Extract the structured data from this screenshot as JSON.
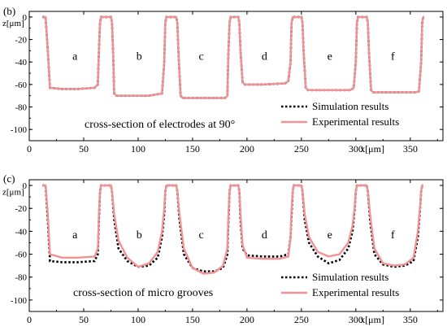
{
  "figure": {
    "background": "#ffffff",
    "sim_color": "#000000",
    "exp_color": "#f29191"
  },
  "chart_data": [
    {
      "type": "line",
      "panel_label": "(b)",
      "annotation": "cross-section of electrodes at 90°",
      "xlabel": "x[μm]",
      "ylabel": "z[μm]",
      "xlim": [
        0,
        380
      ],
      "ylim": [
        -110,
        5
      ],
      "x_ticks": [
        0,
        50,
        100,
        150,
        200,
        250,
        300,
        350
      ],
      "x_tick_labels": [
        "0",
        "50",
        "100",
        "150",
        "200",
        "250",
        "300",
        "350"
      ],
      "y_ticks": [
        0,
        -20,
        -40,
        -60,
        -80,
        -100
      ],
      "y_tick_labels": [
        "0",
        "-20",
        "-40",
        "-60",
        "-80",
        "-100"
      ],
      "region_labels": [
        {
          "text": "a",
          "x": 42,
          "y": -38
        },
        {
          "text": "b",
          "x": 101,
          "y": -38
        },
        {
          "text": "c",
          "x": 158,
          "y": -38
        },
        {
          "text": "d",
          "x": 216,
          "y": -38
        },
        {
          "text": "e",
          "x": 276,
          "y": -38
        },
        {
          "text": "f",
          "x": 334,
          "y": -38
        }
      ],
      "legend": {
        "position": "bottom-right",
        "entries": [
          "Simulation results",
          "Experimental results"
        ]
      },
      "series": [
        {
          "name": "Simulation results",
          "style": "dotted",
          "x": [
            12,
            15,
            17,
            19,
            30,
            45,
            60,
            63,
            64,
            65,
            66,
            75,
            76,
            77,
            78,
            80,
            95,
            110,
            122,
            124,
            125,
            126,
            127,
            135,
            136,
            137,
            139,
            141,
            160,
            175,
            180,
            182,
            183,
            184,
            185,
            192,
            193,
            194,
            196,
            198,
            215,
            235,
            238,
            240,
            241,
            242,
            243,
            250,
            251,
            252,
            254,
            256,
            275,
            295,
            298,
            300,
            301,
            302,
            303,
            310,
            311,
            312,
            314,
            316,
            335,
            355,
            358,
            360,
            361,
            362,
            363
          ],
          "y": [
            0,
            0,
            -30,
            -63,
            -64,
            -64,
            -63,
            -60,
            -30,
            -5,
            0,
            0,
            -5,
            -30,
            -68,
            -70,
            -70,
            -70,
            -68,
            -40,
            -5,
            0,
            0,
            0,
            -5,
            -30,
            -70,
            -72,
            -72,
            -72,
            -72,
            -70,
            -30,
            -5,
            0,
            0,
            -5,
            -30,
            -58,
            -60,
            -60,
            -59,
            -57,
            -40,
            -5,
            0,
            0,
            0,
            -5,
            -30,
            -63,
            -65,
            -65,
            -65,
            -63,
            -40,
            -5,
            0,
            0,
            0,
            -5,
            -30,
            -65,
            -67,
            -67,
            -67,
            -66,
            -40,
            -5,
            0,
            0
          ]
        },
        {
          "name": "Experimental results",
          "style": "solid",
          "x": [
            12,
            15,
            17,
            19,
            30,
            45,
            60,
            63,
            64,
            65,
            66,
            75,
            76,
            77,
            78,
            80,
            95,
            110,
            122,
            124,
            125,
            126,
            127,
            135,
            136,
            137,
            139,
            141,
            160,
            175,
            180,
            182,
            183,
            184,
            185,
            192,
            193,
            194,
            196,
            198,
            215,
            235,
            238,
            240,
            241,
            242,
            243,
            250,
            251,
            252,
            254,
            256,
            275,
            295,
            298,
            300,
            301,
            302,
            303,
            310,
            311,
            312,
            314,
            316,
            335,
            355,
            358,
            360,
            361,
            362,
            363
          ],
          "y": [
            0,
            0,
            -30,
            -63,
            -64,
            -64,
            -63,
            -60,
            -30,
            -5,
            0,
            0,
            -5,
            -30,
            -68,
            -70,
            -70,
            -70,
            -68,
            -40,
            -5,
            0,
            0,
            0,
            -5,
            -30,
            -70,
            -72,
            -72,
            -72,
            -72,
            -70,
            -30,
            -5,
            0,
            0,
            -5,
            -30,
            -58,
            -60,
            -60,
            -59,
            -57,
            -40,
            -5,
            0,
            0,
            0,
            -5,
            -30,
            -63,
            -65,
            -65,
            -65,
            -63,
            -40,
            -5,
            0,
            0,
            0,
            -5,
            -30,
            -65,
            -67,
            -67,
            -67,
            -66,
            -40,
            -5,
            0,
            0
          ]
        }
      ]
    },
    {
      "type": "line",
      "panel_label": "(c)",
      "annotation": "cross-section of micro grooves",
      "xlabel": "x[μm]",
      "ylabel": "z[μm]",
      "xlim": [
        0,
        380
      ],
      "ylim": [
        -110,
        5
      ],
      "x_ticks": [
        0,
        50,
        100,
        150,
        200,
        250,
        300,
        350
      ],
      "x_tick_labels": [
        "0",
        "50",
        "100",
        "150",
        "200",
        "250",
        "300",
        "350"
      ],
      "y_ticks": [
        0,
        -20,
        -40,
        -60,
        -80,
        -100
      ],
      "y_tick_labels": [
        "0",
        "-20",
        "-40",
        "-60",
        "-80",
        "-100"
      ],
      "region_labels": [
        {
          "text": "a",
          "x": 42,
          "y": -46
        },
        {
          "text": "b",
          "x": 101,
          "y": -46
        },
        {
          "text": "c",
          "x": 158,
          "y": -46
        },
        {
          "text": "d",
          "x": 216,
          "y": -46
        },
        {
          "text": "e",
          "x": 276,
          "y": -46
        },
        {
          "text": "f",
          "x": 334,
          "y": -46
        }
      ],
      "legend": {
        "position": "bottom-right",
        "entries": [
          "Simulation results",
          "Experimental results"
        ]
      },
      "series": [
        {
          "name": "Simulation results",
          "style": "dotted",
          "x": [
            12,
            15,
            17,
            19,
            30,
            45,
            60,
            63,
            64,
            65,
            66,
            75,
            76,
            78,
            82,
            90,
            100,
            110,
            118,
            122,
            124,
            125,
            126,
            127,
            135,
            136,
            138,
            142,
            150,
            160,
            170,
            178,
            182,
            183,
            184,
            185,
            192,
            193,
            194,
            196,
            200,
            215,
            230,
            238,
            240,
            241,
            242,
            243,
            250,
            251,
            253,
            257,
            265,
            275,
            285,
            293,
            297,
            299,
            300,
            301,
            302,
            310,
            311,
            313,
            317,
            325,
            335,
            345,
            353,
            357,
            359,
            360,
            361,
            362
          ],
          "y": [
            0,
            0,
            -30,
            -66,
            -67,
            -67,
            -66,
            -60,
            -30,
            -5,
            0,
            0,
            -5,
            -30,
            -55,
            -66,
            -71,
            -70,
            -63,
            -45,
            -25,
            -5,
            0,
            0,
            0,
            -5,
            -30,
            -60,
            -72,
            -75,
            -75,
            -72,
            -60,
            -30,
            -5,
            0,
            0,
            -5,
            -30,
            -55,
            -61,
            -62,
            -62,
            -60,
            -45,
            -25,
            -5,
            0,
            0,
            -5,
            -30,
            -50,
            -62,
            -68,
            -65,
            -55,
            -40,
            -20,
            -5,
            0,
            0,
            0,
            -5,
            -30,
            -60,
            -69,
            -71,
            -70,
            -66,
            -45,
            -20,
            -5,
            0,
            0
          ]
        },
        {
          "name": "Experimental results",
          "style": "solid",
          "x": [
            12,
            15,
            17,
            19,
            30,
            45,
            60,
            63,
            64,
            65,
            66,
            75,
            76,
            78,
            82,
            90,
            100,
            110,
            118,
            122,
            124,
            125,
            126,
            127,
            135,
            136,
            138,
            142,
            150,
            160,
            170,
            178,
            182,
            183,
            184,
            185,
            192,
            193,
            194,
            196,
            200,
            215,
            230,
            238,
            240,
            241,
            242,
            243,
            250,
            251,
            253,
            257,
            265,
            275,
            285,
            293,
            297,
            299,
            300,
            301,
            302,
            310,
            311,
            313,
            317,
            325,
            335,
            345,
            353,
            357,
            359,
            360,
            361,
            362
          ],
          "y": [
            0,
            0,
            -25,
            -60,
            -63,
            -63,
            -62,
            -55,
            -25,
            -5,
            0,
            0,
            -5,
            -25,
            -48,
            -63,
            -71,
            -68,
            -58,
            -40,
            -20,
            -5,
            0,
            0,
            0,
            -5,
            -25,
            -55,
            -72,
            -77,
            -76,
            -70,
            -55,
            -25,
            -5,
            0,
            0,
            -5,
            -25,
            -52,
            -63,
            -64,
            -64,
            -62,
            -45,
            -20,
            -5,
            0,
            0,
            -5,
            -25,
            -45,
            -58,
            -62,
            -60,
            -50,
            -35,
            -18,
            -5,
            0,
            0,
            0,
            -5,
            -25,
            -55,
            -68,
            -70,
            -69,
            -63,
            -40,
            -18,
            -5,
            0,
            0
          ]
        }
      ]
    }
  ]
}
